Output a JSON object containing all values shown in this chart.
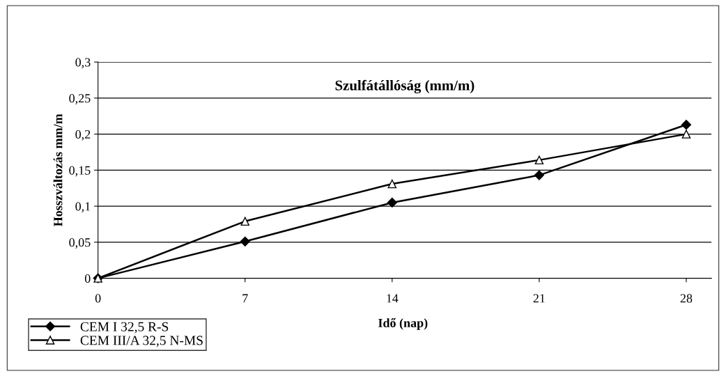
{
  "chart_data": {
    "type": "line",
    "title": "Szulfátállóság (mm/m)",
    "xlabel": "Idő (nap)",
    "ylabel": "Hosszváltozás mm/m",
    "x": [
      0,
      7,
      14,
      21,
      28
    ],
    "series": [
      {
        "name": "CEM I 32,5 R-S",
        "color": "#000000",
        "marker": "diamond",
        "values": [
          0,
          0.051,
          0.105,
          0.143,
          0.213
        ]
      },
      {
        "name": "CEM III/A 32,5 N-MS",
        "color": "#000000",
        "marker": "triangle",
        "values": [
          0,
          0.079,
          0.131,
          0.164,
          0.2
        ]
      }
    ],
    "xlim": [
      0,
      29.2
    ],
    "xticks": [
      0,
      7,
      14,
      21,
      28
    ],
    "ylim": [
      0,
      0.3
    ],
    "yticks": [
      {
        "value": 0,
        "label": "0"
      },
      {
        "value": 0.05,
        "label": "0,05"
      },
      {
        "value": 0.1,
        "label": "0,1"
      },
      {
        "value": 0.15,
        "label": "0,15"
      },
      {
        "value": 0.2,
        "label": "0,2"
      },
      {
        "value": 0.25,
        "label": "0,25"
      },
      {
        "value": 0.3,
        "label": "0,3"
      }
    ],
    "grid": "y",
    "legend": "bottom left",
    "line_style": "solid"
  }
}
